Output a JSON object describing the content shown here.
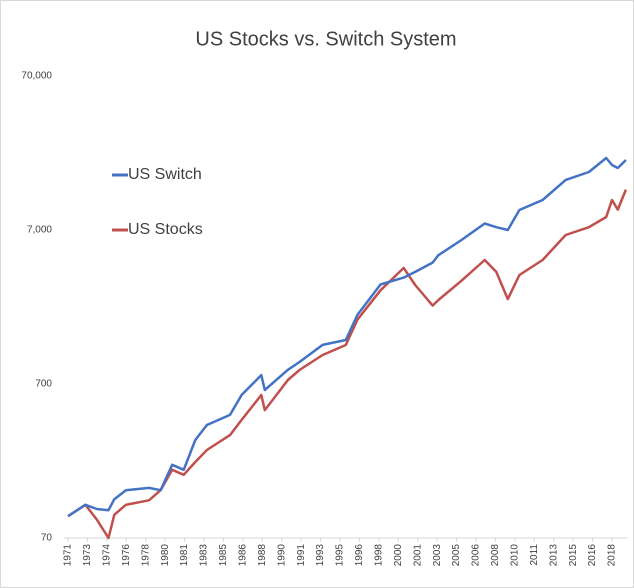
{
  "chart_data": {
    "type": "line",
    "title": "US Stocks vs. Switch System",
    "x": [
      1971,
      1972.5,
      1973.5,
      1974.5,
      1975,
      1976,
      1978,
      1979,
      1980,
      1981,
      1982,
      1983,
      1985,
      1986,
      1987.7,
      1988,
      1990,
      1991,
      1993,
      1995,
      1996,
      1998,
      2000,
      2001,
      2002.5,
      2003,
      2005,
      2007,
      2008,
      2009,
      2010,
      2012,
      2014,
      2016,
      2017.5,
      2018,
      2018.5,
      2019.2
    ],
    "series": [
      {
        "name": "US Switch",
        "color": "#4472c4",
        "values": [
          97,
          115,
          108,
          106,
          125,
          143,
          148,
          143,
          209,
          194,
          303,
          379,
          441,
          594,
          800,
          640,
          866,
          973,
          1256,
          1351,
          1966,
          3100,
          3435,
          3740,
          4300,
          4800,
          6030,
          7720,
          7300,
          7000,
          9440,
          10970,
          14800,
          16670,
          20550,
          18500,
          17700,
          19950
        ]
      },
      {
        "name": "US Stocks",
        "color": "#c0504d",
        "values": [
          97,
          115,
          92,
          70,
          99,
          115,
          123,
          143,
          194,
          180,
          218,
          261,
          326,
          409,
          594,
          474,
          743,
          863,
          1080,
          1255,
          1830,
          2840,
          3970,
          3075,
          2260,
          2457,
          3280,
          4470,
          3740,
          2490,
          3574,
          4470,
          6500,
          7300,
          8500,
          10970,
          9500,
          12800
        ]
      }
    ],
    "log_scale": true,
    "grid": false,
    "legend_position": "upper left",
    "xlim": [
      1971,
      2019.3
    ],
    "ylim": [
      70,
      70000
    ],
    "yticks": [
      70,
      700,
      {
        "value": 7000,
        "label": "7,000"
      },
      {
        "value": 70000,
        "label": "70,000"
      }
    ],
    "xticks": [
      {
        "value": 1971,
        "label": "1971"
      },
      {
        "value": 1972.68,
        "label": "1973"
      },
      {
        "value": 1974.36,
        "label": "1974"
      },
      {
        "value": 1976.04,
        "label": "1976"
      },
      {
        "value": 1977.71,
        "label": "1978"
      },
      {
        "value": 1979.39,
        "label": "1980"
      },
      {
        "value": 1981.07,
        "label": "1981"
      },
      {
        "value": 1982.75,
        "label": "1983"
      },
      {
        "value": 1984.43,
        "label": "1985"
      },
      {
        "value": 1986.11,
        "label": "1986"
      },
      {
        "value": 1987.79,
        "label": "1988"
      },
      {
        "value": 1989.46,
        "label": "1990"
      },
      {
        "value": 1991.14,
        "label": "1991"
      },
      {
        "value": 1992.82,
        "label": "1993"
      },
      {
        "value": 1994.5,
        "label": "1995"
      },
      {
        "value": 1996.18,
        "label": "1996"
      },
      {
        "value": 1997.86,
        "label": "1998"
      },
      {
        "value": 1999.54,
        "label": "2000"
      },
      {
        "value": 2001.21,
        "label": "2001"
      },
      {
        "value": 2002.89,
        "label": "2003"
      },
      {
        "value": 2004.57,
        "label": "2005"
      },
      {
        "value": 2006.25,
        "label": "2006"
      },
      {
        "value": 2007.93,
        "label": "2008"
      },
      {
        "value": 2009.61,
        "label": "2010"
      },
      {
        "value": 2011.29,
        "label": "2011"
      },
      {
        "value": 2012.96,
        "label": "2013"
      },
      {
        "value": 2014.64,
        "label": "2015"
      },
      {
        "value": 2016.32,
        "label": "2016"
      },
      {
        "value": 2018,
        "label": "2018"
      }
    ]
  }
}
